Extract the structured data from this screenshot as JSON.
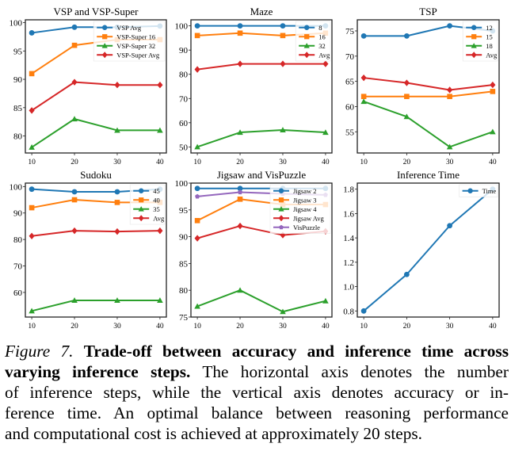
{
  "chart_data": [
    {
      "type": "line",
      "title": "VSP and VSP-Super",
      "x": [
        10,
        20,
        30,
        40
      ],
      "xticks": [
        "10",
        "20",
        "30",
        "40"
      ],
      "xlim": [
        8.5,
        41.5
      ],
      "ylim": [
        77,
        100.5
      ],
      "yticks": [
        80,
        85,
        90,
        95,
        100
      ],
      "legend_position": "top-right",
      "legend_font": "small",
      "series": [
        {
          "name": "VSP Avg",
          "color": "#1f77b4",
          "marker": "circle",
          "values": [
            98.2,
            99.2,
            99.2,
            99.4
          ]
        },
        {
          "name": "VSP-Super 16",
          "color": "#ff7f0e",
          "marker": "square",
          "values": [
            91,
            96,
            97,
            97
          ]
        },
        {
          "name": "VSP-Super 32",
          "color": "#2ca02c",
          "marker": "triangle",
          "values": [
            78,
            83,
            81,
            81
          ]
        },
        {
          "name": "VSP-Super Avg",
          "color": "#d62728",
          "marker": "diamond",
          "values": [
            84.5,
            89.5,
            89,
            89
          ]
        }
      ]
    },
    {
      "type": "line",
      "title": "Maze",
      "x": [
        10,
        20,
        30,
        40
      ],
      "xticks": [
        "10",
        "20",
        "30",
        "40"
      ],
      "xlim": [
        8.5,
        41.5
      ],
      "ylim": [
        47.5,
        102.5
      ],
      "yticks": [
        50,
        60,
        70,
        80,
        90,
        100
      ],
      "legend_position": "top-right",
      "series": [
        {
          "name": "8",
          "color": "#1f77b4",
          "marker": "circle",
          "values": [
            100,
            100,
            100,
            100
          ]
        },
        {
          "name": "16",
          "color": "#ff7f0e",
          "marker": "square",
          "values": [
            96,
            97,
            96,
            97
          ]
        },
        {
          "name": "32",
          "color": "#2ca02c",
          "marker": "triangle",
          "values": [
            50,
            56,
            57,
            56
          ]
        },
        {
          "name": "Avg",
          "color": "#d62728",
          "marker": "diamond",
          "values": [
            82,
            84.3,
            84.3,
            84.3
          ]
        }
      ]
    },
    {
      "type": "line",
      "title": "TSP",
      "x": [
        10,
        20,
        30,
        40
      ],
      "xticks": [
        "10",
        "20",
        "30",
        "40"
      ],
      "xlim": [
        8.5,
        41.5
      ],
      "ylim": [
        50.8,
        77.2
      ],
      "yticks": [
        55,
        60,
        65,
        70,
        75
      ],
      "legend_position": "top-right",
      "series": [
        {
          "name": "12",
          "color": "#1f77b4",
          "marker": "circle",
          "values": [
            74,
            74,
            76,
            75
          ]
        },
        {
          "name": "15",
          "color": "#ff7f0e",
          "marker": "square",
          "values": [
            62,
            62,
            62,
            63
          ]
        },
        {
          "name": "18",
          "color": "#2ca02c",
          "marker": "triangle",
          "values": [
            61,
            58,
            52,
            55
          ]
        },
        {
          "name": "Avg",
          "color": "#d62728",
          "marker": "diamond",
          "values": [
            65.7,
            64.7,
            63.3,
            64.3
          ]
        }
      ]
    },
    {
      "type": "line",
      "title": "Sudoku",
      "x": [
        10,
        20,
        30,
        40
      ],
      "xticks": [
        "10",
        "20",
        "30",
        "40"
      ],
      "xlim": [
        8.5,
        41.5
      ],
      "ylim": [
        50.7,
        101.3
      ],
      "yticks": [
        60,
        70,
        80,
        90,
        100
      ],
      "legend_position": "top-right",
      "series": [
        {
          "name": "45",
          "color": "#1f77b4",
          "marker": "circle",
          "values": [
            99,
            98,
            98,
            99
          ]
        },
        {
          "name": "40",
          "color": "#ff7f0e",
          "marker": "square",
          "values": [
            92,
            95,
            94,
            94
          ]
        },
        {
          "name": "35",
          "color": "#2ca02c",
          "marker": "triangle",
          "values": [
            53,
            57,
            57,
            57
          ]
        },
        {
          "name": "Avg",
          "color": "#d62728",
          "marker": "diamond",
          "values": [
            81.3,
            83.3,
            83,
            83.3
          ]
        }
      ]
    },
    {
      "type": "line",
      "title": "Jigsaw and VisPuzzle",
      "x": [
        10,
        20,
        30,
        40
      ],
      "xticks": [
        "10",
        "20",
        "30",
        "40"
      ],
      "xlim": [
        8.5,
        41.5
      ],
      "ylim": [
        75,
        100
      ],
      "yticks": [
        75,
        80,
        85,
        90,
        95,
        100
      ],
      "legend_position": "top-right",
      "series": [
        {
          "name": "Jigsaw 2",
          "color": "#1f77b4",
          "marker": "circle",
          "values": [
            99,
            99,
            99,
            99
          ]
        },
        {
          "name": "Jigsaw 3",
          "color": "#ff7f0e",
          "marker": "square",
          "values": [
            93,
            97,
            96,
            96
          ]
        },
        {
          "name": "Jigsaw 4",
          "color": "#2ca02c",
          "marker": "triangle",
          "values": [
            77,
            80,
            76,
            78
          ]
        },
        {
          "name": "Jigsaw Avg",
          "color": "#d62728",
          "marker": "diamond",
          "values": [
            89.7,
            92,
            90.3,
            91
          ]
        },
        {
          "name": "VisPuzzle",
          "color": "#9467bd",
          "marker": "pentagon",
          "values": [
            97.5,
            98.3,
            98,
            97.8
          ]
        }
      ]
    },
    {
      "type": "line",
      "title": "Inference Time",
      "x": [
        10,
        20,
        30,
        40
      ],
      "xticks": [
        "10",
        "20",
        "30",
        "40"
      ],
      "xlim": [
        8.5,
        41.5
      ],
      "ylim": [
        0.75,
        1.85
      ],
      "yticks": [
        0.8,
        1.0,
        1.2,
        1.4,
        1.6,
        1.8
      ],
      "ytick_labels": [
        "0.8",
        "1.0",
        "1.2",
        "1.4",
        "1.6",
        "1.8"
      ],
      "legend_position": "top-right",
      "series": [
        {
          "name": "Time",
          "color": "#1f77b4",
          "marker": "circle",
          "values": [
            0.8,
            1.1,
            1.5,
            1.8
          ]
        }
      ]
    }
  ],
  "caption": {
    "figure_label": "Figure 7.",
    "bold_line1": "Trade-off between accuracy and inference time across",
    "bold_line2": "varying inference steps.",
    "line2_rest": "The horizontal axis denotes the number",
    "line3": "of inference steps, while the vertical axis denotes accuracy or in-",
    "line4": "ference time. An optimal balance between reasoning performance",
    "line5": "and computational cost is achieved at approximately 20 steps."
  }
}
